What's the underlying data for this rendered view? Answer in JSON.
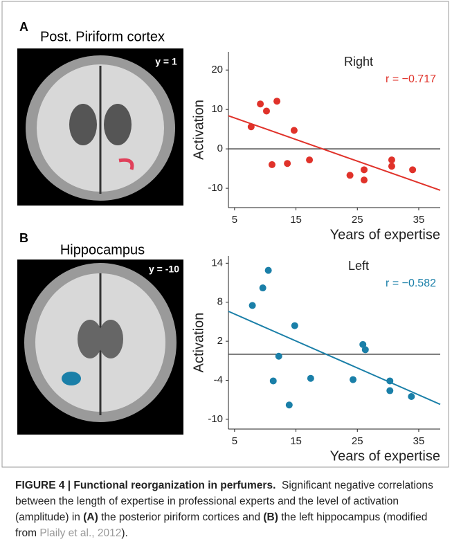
{
  "chart_data": [
    {
      "type": "scatter",
      "title": "Right",
      "annotation": "r = −0.717",
      "color": "#e0322a",
      "x_label": "Years of expertise",
      "y_label": "Activation",
      "x": [
        7.7,
        9.2,
        10.2,
        11.1,
        11.9,
        13.6,
        14.7,
        17.2,
        23.8,
        26.1,
        26.1,
        30.6,
        30.6,
        34
      ],
      "values": [
        5.6,
        11.4,
        9.6,
        -4,
        12.1,
        -3.7,
        4.7,
        -2.8,
        -6.7,
        -5.3,
        -7.9,
        -2.8,
        -4.4,
        -5.3
      ],
      "fit": {
        "x": [
          4,
          38.5
        ],
        "values": [
          8.4,
          -10.5
        ]
      },
      "reference_line": 0,
      "xlim": [
        4,
        38.5
      ],
      "xticks": [
        5,
        15,
        25,
        35
      ],
      "ylim": [
        -14.9,
        24.6
      ],
      "yticks": [
        20,
        10,
        0,
        -10
      ]
    },
    {
      "type": "scatter",
      "title": "Left",
      "annotation": "r = −0.582",
      "color": "#1a7fa8",
      "x_label": "Years of expertise",
      "y_label": "Activation",
      "x": [
        7.9,
        9.6,
        10.5,
        11.3,
        12.2,
        13.9,
        14.8,
        17.4,
        24.3,
        25.9,
        26.3,
        30.3,
        30.3,
        33.8
      ],
      "values": [
        7.5,
        10.2,
        12.9,
        -4.1,
        -0.3,
        -7.8,
        4.4,
        -3.7,
        -3.9,
        1.5,
        0.7,
        -4.1,
        -5.6,
        -6.5
      ],
      "fit": {
        "x": [
          4,
          38.5
        ],
        "values": [
          6.6,
          -7.7
        ]
      },
      "reference_line": 0,
      "xlim": [
        4,
        38.5
      ],
      "xticks": [
        5,
        15,
        25,
        35
      ],
      "ylim": [
        -11.5,
        15.1
      ],
      "yticks": [
        14,
        8,
        2,
        -4,
        -10
      ]
    }
  ],
  "panels": [
    {
      "label": "A",
      "region": "Post. Piriform cortex",
      "slice": "y = 1"
    },
    {
      "label": "B",
      "region": "Hippocampus",
      "slice": "y = -10"
    }
  ],
  "caption": {
    "heading": "FIGURE 4 | Functional reorganization in perfumers.",
    "text_1": "Significant negative correlations between the length of expertise in professional experts and the level of activation (amplitude) in",
    "panel_a": "(A)",
    "text_2": "the posterior piriform cortices and",
    "panel_b": "(B)",
    "text_3": "the left hippocampus (modified from",
    "reference": "Plaily et al., 2012",
    "text_4": ")."
  }
}
